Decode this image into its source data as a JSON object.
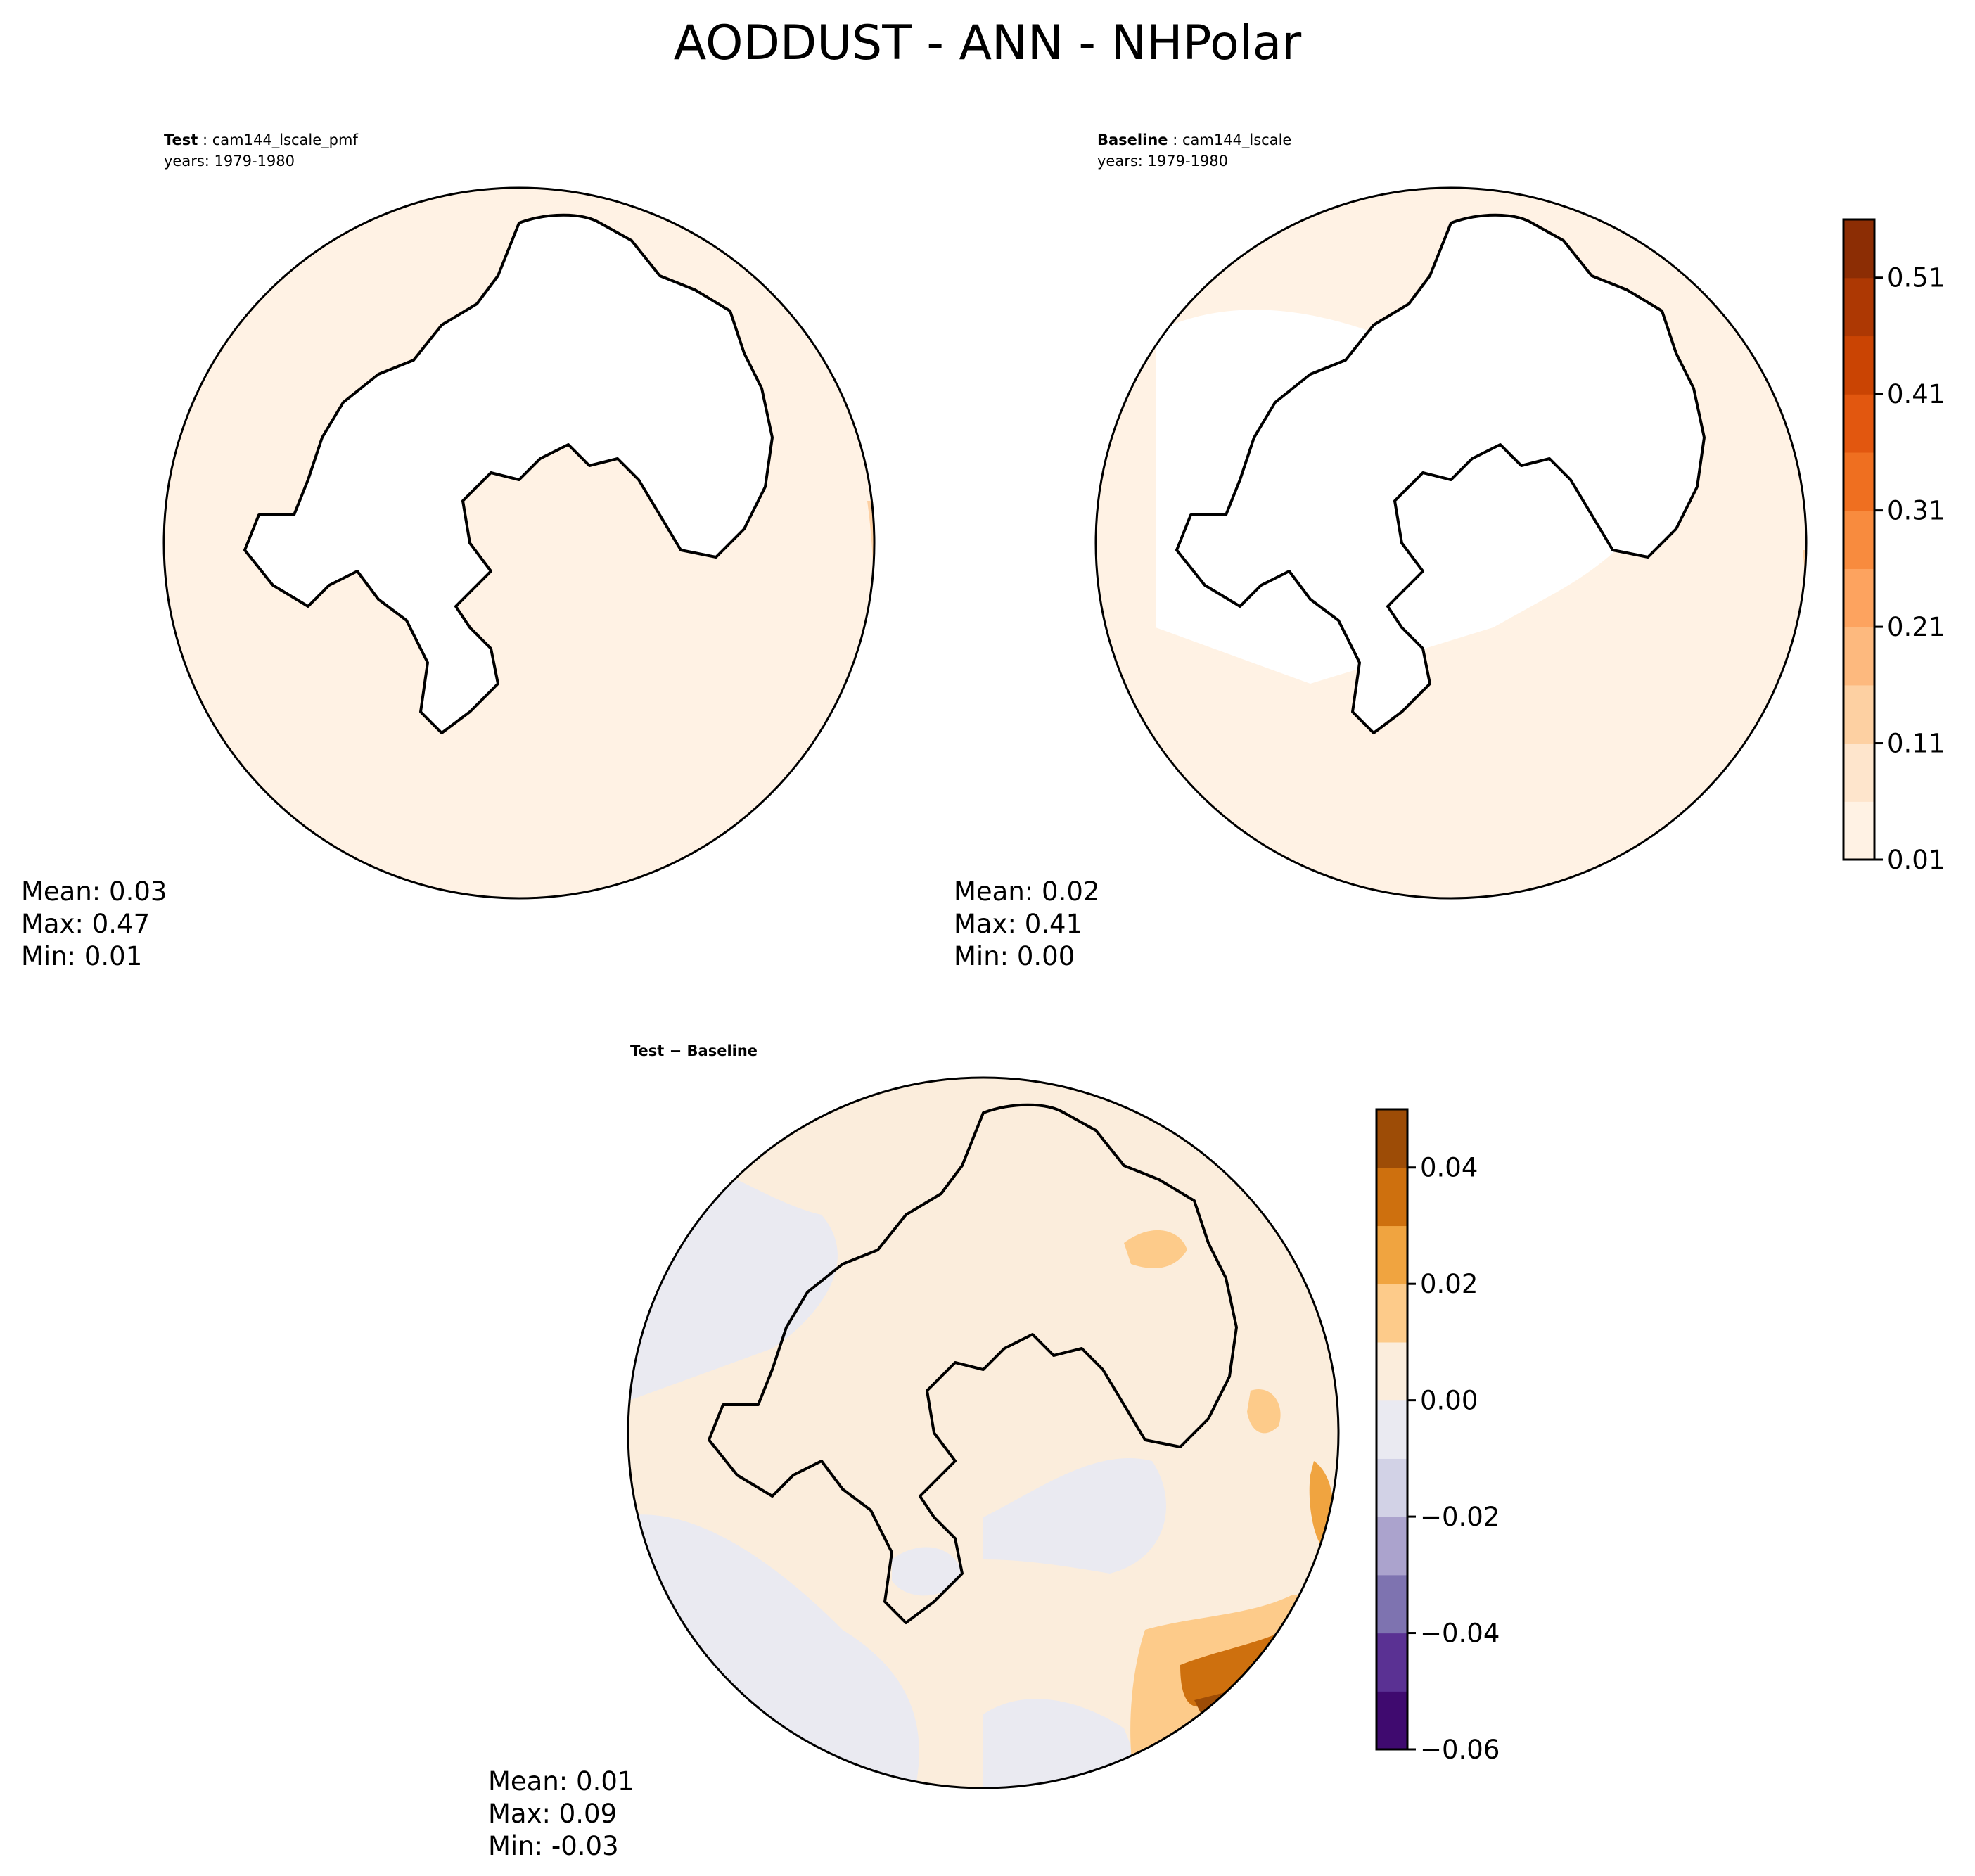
{
  "chart_data": {
    "type": "map",
    "title": "AODDUST - ANN - NHPolar",
    "panels": [
      {
        "id": "test",
        "label": "Test",
        "case": "cam144_lscale_pmf",
        "years_line": "years: 1979-1980",
        "stats": {
          "mean": "Mean:  0.03",
          "max": "Max:  0.47",
          "min": "Min:  0.01"
        }
      },
      {
        "id": "baseline",
        "label": "Baseline",
        "case": "cam144_lscale",
        "years_line": "years: 1979-1980",
        "stats": {
          "mean": "Mean:  0.02",
          "max": "Max:  0.41",
          "min": "Min:  0.00"
        }
      },
      {
        "id": "diff",
        "label": "Test − Baseline",
        "stats": {
          "mean": "Mean:  0.01",
          "max": "Max:  0.09",
          "min": "Min: -0.03"
        }
      }
    ],
    "colorbar_main": {
      "levels": [
        0.01,
        0.06,
        0.11,
        0.16,
        0.21,
        0.26,
        0.31,
        0.36,
        0.41,
        0.46,
        0.51,
        0.56
      ],
      "colors": [
        "#fff2e4",
        "#fee5cc",
        "#fdd0a2",
        "#fdb97e",
        "#fda35f",
        "#f88b3e",
        "#ef6f20",
        "#e2570f",
        "#ca4403",
        "#ad3803",
        "#8c2d04"
      ],
      "tick_labels": [
        "0.01",
        "0.11",
        "0.21",
        "0.31",
        "0.41",
        "0.51"
      ]
    },
    "colorbar_diff": {
      "levels": [
        -0.06,
        -0.05,
        -0.04,
        -0.03,
        -0.02,
        -0.01,
        0.0,
        0.01,
        0.02,
        0.03,
        0.04,
        0.05
      ],
      "colors": [
        "#3f0a6f",
        "#5a3193",
        "#7e73b0",
        "#aba3cd",
        "#d2d2e6",
        "#eaeaf1",
        "#fbeddc",
        "#fdcb8a",
        "#f0a440",
        "#ce700e",
        "#9d4c06"
      ],
      "tick_labels": [
        "−0.06",
        "−0.04",
        "−0.02",
        "0.00",
        "0.02",
        "0.04"
      ]
    }
  }
}
